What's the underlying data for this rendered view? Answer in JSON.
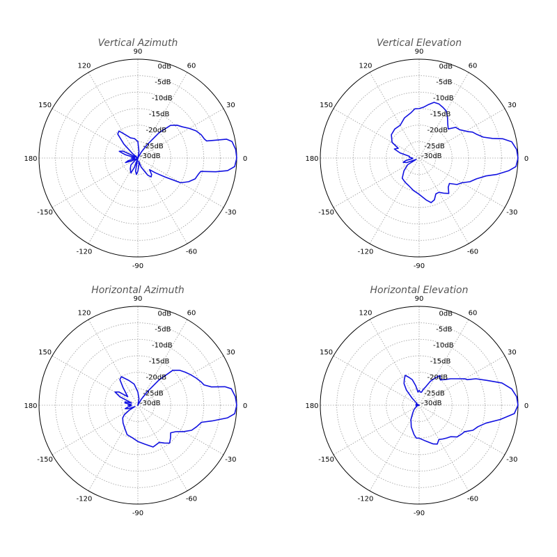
{
  "chart_data": [
    {
      "type": "polar",
      "title": "Vertical Azimuth",
      "angle_ticks": [
        "0",
        "30",
        "60",
        "90",
        "120",
        "150",
        "180",
        "-150",
        "-120",
        "-90",
        "-60",
        "-30"
      ],
      "ring_labels": [
        "0dB",
        "-5dB",
        "-10dB",
        "-15dB",
        "-20dB",
        "-25dB",
        "-30dB"
      ],
      "r_range": [
        -30,
        0
      ],
      "series": [
        {
          "color": "#1010e0",
          "points": [
            [
              0,
              0
            ],
            [
              5,
              -0.2
            ],
            [
              10,
              -1
            ],
            [
              12,
              -2.5
            ],
            [
              13,
              -6
            ],
            [
              14,
              -8.5
            ],
            [
              16,
              -9
            ],
            [
              20,
              -9.5
            ],
            [
              25,
              -10.5
            ],
            [
              30,
              -12
            ],
            [
              35,
              -13.5
            ],
            [
              40,
              -14.5
            ],
            [
              45,
              -16
            ],
            [
              50,
              -20
            ],
            [
              55,
              -25
            ],
            [
              60,
              -28
            ],
            [
              70,
              -30
            ],
            [
              80,
              -28
            ],
            [
              90,
              -25
            ],
            [
              100,
              -24
            ],
            [
              110,
              -23.5
            ],
            [
              118,
              -22
            ],
            [
              125,
              -20
            ],
            [
              130,
              -20.5
            ],
            [
              135,
              -24
            ],
            [
              140,
              -28
            ],
            [
              150,
              -30
            ],
            [
              155,
              -25
            ],
            [
              160,
              -24
            ],
            [
              165,
              -26
            ],
            [
              170,
              -29
            ],
            [
              175,
              -29
            ],
            [
              180,
              -28
            ],
            [
              185,
              -29
            ],
            [
              190,
              -29
            ],
            [
              195,
              -27
            ],
            [
              200,
              -26
            ],
            [
              205,
              -28
            ],
            [
              210,
              -30
            ],
            [
              220,
              -29
            ],
            [
              225,
              -27
            ],
            [
              235,
              -26
            ],
            [
              245,
              -25
            ],
            [
              250,
              -27
            ],
            [
              255,
              -30
            ],
            [
              260,
              -26
            ],
            [
              265,
              -25
            ],
            [
              270,
              -26
            ],
            [
              280,
              -28
            ],
            [
              285,
              -29
            ],
            [
              290,
              -27
            ],
            [
              300,
              -24
            ],
            [
              305,
              -23
            ],
            [
              310,
              -23.5
            ],
            [
              315,
              -25
            ],
            [
              320,
              -23
            ],
            [
              325,
              -20
            ],
            [
              330,
              -15
            ],
            [
              335,
              -13
            ],
            [
              340,
              -11.5
            ],
            [
              345,
              -11
            ],
            [
              348,
              -10.5
            ],
            [
              350,
              -6
            ],
            [
              352,
              -2.5
            ],
            [
              355,
              -0.5
            ],
            [
              360,
              0
            ]
          ]
        }
      ]
    },
    {
      "type": "polar",
      "title": "Vertical Elevation",
      "angle_ticks": [
        "0",
        "30",
        "60",
        "90",
        "120",
        "150",
        "180",
        "-150",
        "-120",
        "-90",
        "-60",
        "-30"
      ],
      "ring_labels": [
        "0dB",
        "-5dB",
        "-10dB",
        "-15dB",
        "-20dB",
        "-25dB",
        "-30dB"
      ],
      "r_range": [
        -30,
        0
      ],
      "series": [
        {
          "color": "#1010e0",
          "points": [
            [
              0,
              0
            ],
            [
              5,
              -0.3
            ],
            [
              10,
              -1.5
            ],
            [
              13,
              -4
            ],
            [
              15,
              -7
            ],
            [
              18,
              -9.5
            ],
            [
              22,
              -11
            ],
            [
              26,
              -12
            ],
            [
              28,
              -13
            ],
            [
              35,
              -15
            ],
            [
              40,
              -15.5
            ],
            [
              45,
              -17.5
            ],
            [
              50,
              -16.5
            ],
            [
              55,
              -15
            ],
            [
              60,
              -13.5
            ],
            [
              65,
              -13
            ],
            [
              70,
              -12.5
            ],
            [
              75,
              -12.5
            ],
            [
              80,
              -13.5
            ],
            [
              85,
              -14.5
            ],
            [
              90,
              -15
            ],
            [
              95,
              -15
            ],
            [
              100,
              -16
            ],
            [
              110,
              -17
            ],
            [
              120,
              -18.5
            ],
            [
              130,
              -18.5
            ],
            [
              140,
              -19
            ],
            [
              150,
              -20.5
            ],
            [
              155,
              -23
            ],
            [
              160,
              -22
            ],
            [
              165,
              -24
            ],
            [
              170,
              -27
            ],
            [
              175,
              -27
            ],
            [
              180,
              -28
            ],
            [
              185,
              -28
            ],
            [
              190,
              -26
            ],
            [
              195,
              -25
            ],
            [
              200,
              -26
            ],
            [
              205,
              -29
            ],
            [
              210,
              -26
            ],
            [
              220,
              -24
            ],
            [
              230,
              -22
            ],
            [
              240,
              -21.5
            ],
            [
              250,
              -21
            ],
            [
              260,
              -20
            ],
            [
              270,
              -19
            ],
            [
              280,
              -17
            ],
            [
              285,
              -16
            ],
            [
              290,
              -16.5
            ],
            [
              295,
              -18
            ],
            [
              300,
              -18
            ],
            [
              305,
              -17
            ],
            [
              310,
              -16
            ],
            [
              315,
              -17.5
            ],
            [
              320,
              -18
            ],
            [
              325,
              -16
            ],
            [
              330,
              -15
            ],
            [
              335,
              -13
            ],
            [
              340,
              -11.5
            ],
            [
              345,
              -9
            ],
            [
              348,
              -6
            ],
            [
              352,
              -2.5
            ],
            [
              355,
              -0.5
            ],
            [
              360,
              0
            ]
          ]
        }
      ]
    },
    {
      "type": "polar",
      "title": "Horizontal Azimuth",
      "angle_ticks": [
        "0",
        "30",
        "60",
        "90",
        "120",
        "150",
        "180",
        "-150",
        "-120",
        "-90",
        "-60",
        "-30"
      ],
      "ring_labels": [
        "0dB",
        "-5dB",
        "-10dB",
        "-15dB",
        "-20dB",
        "-25dB",
        "-30dB"
      ],
      "r_range": [
        -30,
        0
      ],
      "series": [
        {
          "color": "#1010e0",
          "points": [
            [
              0,
              0
            ],
            [
              5,
              -0.3
            ],
            [
              10,
              -1.2
            ],
            [
              12,
              -3
            ],
            [
              14,
              -7
            ],
            [
              17,
              -9
            ],
            [
              20,
              -9.5
            ],
            [
              25,
              -10.5
            ],
            [
              30,
              -11.5
            ],
            [
              35,
              -12.5
            ],
            [
              40,
              -13.5
            ],
            [
              45,
              -15
            ],
            [
              50,
              -20
            ],
            [
              55,
              -25
            ],
            [
              60,
              -28
            ],
            [
              70,
              -30
            ],
            [
              80,
              -28
            ],
            [
              90,
              -26
            ],
            [
              100,
              -23.5
            ],
            [
              110,
              -22
            ],
            [
              120,
              -20
            ],
            [
              125,
              -20.5
            ],
            [
              130,
              -23
            ],
            [
              140,
              -26
            ],
            [
              145,
              -23
            ],
            [
              150,
              -22
            ],
            [
              155,
              -24
            ],
            [
              160,
              -28
            ],
            [
              165,
              -26
            ],
            [
              170,
              -26
            ],
            [
              175,
              -28
            ],
            [
              180,
              -27
            ],
            [
              185,
              -28
            ],
            [
              190,
              -27
            ],
            [
              195,
              -26
            ],
            [
              200,
              -27
            ],
            [
              205,
              -29
            ],
            [
              210,
              -27
            ],
            [
              215,
              -25
            ],
            [
              220,
              -24
            ],
            [
              230,
              -23
            ],
            [
              240,
              -22
            ],
            [
              250,
              -20.5
            ],
            [
              260,
              -20
            ],
            [
              270,
              -19
            ],
            [
              280,
              -18
            ],
            [
              290,
              -16.5
            ],
            [
              300,
              -17
            ],
            [
              305,
              -16
            ],
            [
              310,
              -15
            ],
            [
              315,
              -16
            ],
            [
              320,
              -17
            ],
            [
              325,
              -16
            ],
            [
              330,
              -14
            ],
            [
              335,
              -12
            ],
            [
              340,
              -11
            ],
            [
              345,
              -10
            ],
            [
              348,
              -7
            ],
            [
              352,
              -2.5
            ],
            [
              355,
              -0.5
            ],
            [
              360,
              0
            ]
          ]
        }
      ]
    },
    {
      "type": "polar",
      "title": "Horizontal Elevation",
      "angle_ticks": [
        "0",
        "30",
        "60",
        "90",
        "120",
        "150",
        "180",
        "-150",
        "-120",
        "-90",
        "-60",
        "-30"
      ],
      "ring_labels": [
        "0dB",
        "-5dB",
        "-10dB",
        "-15dB",
        "-20dB",
        "-25dB",
        "-30dB"
      ],
      "r_range": [
        -30,
        0
      ],
      "series": [
        {
          "color": "#1010e0",
          "points": [
            [
              0,
              0
            ],
            [
              5,
              -0.3
            ],
            [
              10,
              -1.5
            ],
            [
              15,
              -4
            ],
            [
              20,
              -8
            ],
            [
              25,
              -11
            ],
            [
              28,
              -13.5
            ],
            [
              30,
              -14
            ],
            [
              35,
              -16
            ],
            [
              40,
              -17.5
            ],
            [
              45,
              -19
            ],
            [
              50,
              -20
            ],
            [
              55,
              -19
            ],
            [
              60,
              -20.5
            ],
            [
              65,
              -22
            ],
            [
              70,
              -24
            ],
            [
              75,
              -25
            ],
            [
              80,
              -26
            ],
            [
              85,
              -26
            ],
            [
              90,
              -25.5
            ],
            [
              95,
              -26
            ],
            [
              100,
              -24
            ],
            [
              105,
              -22
            ],
            [
              110,
              -21
            ],
            [
              115,
              -20
            ],
            [
              120,
              -21
            ],
            [
              125,
              -22
            ],
            [
              130,
              -24
            ],
            [
              135,
              -27
            ],
            [
              140,
              -29
            ],
            [
              150,
              -29
            ],
            [
              160,
              -30
            ],
            [
              170,
              -29
            ],
            [
              180,
              -29
            ],
            [
              190,
              -30
            ],
            [
              200,
              -29
            ],
            [
              210,
              -29
            ],
            [
              220,
              -28
            ],
            [
              230,
              -27
            ],
            [
              240,
              -25
            ],
            [
              250,
              -23
            ],
            [
              260,
              -21
            ],
            [
              265,
              -20
            ],
            [
              270,
              -20
            ],
            [
              280,
              -19
            ],
            [
              290,
              -17.5
            ],
            [
              295,
              -17
            ],
            [
              300,
              -18
            ],
            [
              305,
              -17.5
            ],
            [
              310,
              -17
            ],
            [
              315,
              -16.5
            ],
            [
              320,
              -15
            ],
            [
              325,
              -14.5
            ],
            [
              330,
              -14
            ],
            [
              335,
              -12
            ],
            [
              340,
              -11
            ],
            [
              345,
              -9
            ],
            [
              350,
              -5
            ],
            [
              355,
              -1
            ],
            [
              360,
              0
            ]
          ]
        }
      ]
    }
  ]
}
